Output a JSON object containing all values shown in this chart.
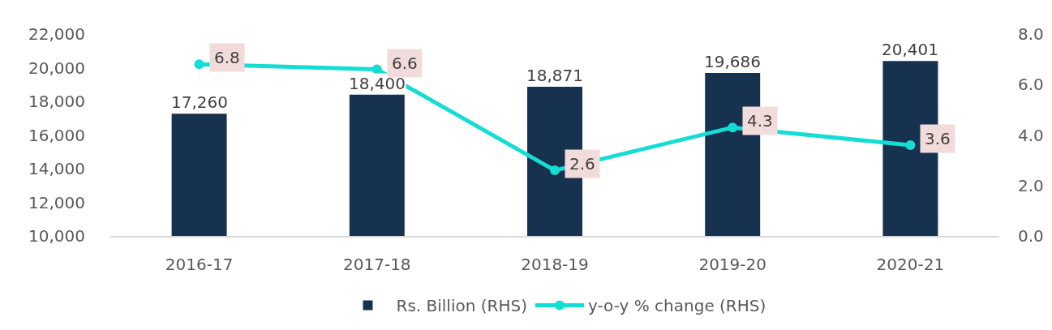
{
  "chart_data": {
    "type": "bar",
    "categories": [
      "2016-17",
      "2017-18",
      "2018-19",
      "2019-20",
      "2020-21"
    ],
    "series": [
      {
        "name": "Rs. Billion (RHS)",
        "color": "#17324f",
        "values": [
          17260,
          18400,
          18871,
          19686,
          20401
        ],
        "value_labels": [
          "17,260",
          "18,400",
          "18,871",
          "19,686",
          "20,401"
        ]
      },
      {
        "name": "y-o-y % change (RHS)",
        "type": "line",
        "axis": "y2",
        "color": "#13ddd4",
        "values": [
          6.8,
          6.6,
          2.6,
          4.3,
          3.6
        ]
      }
    ],
    "ylim": [
      10000,
      22000
    ],
    "yticks": [
      {
        "value": 10000,
        "label": "10,000"
      },
      {
        "value": 12000,
        "label": "12,000"
      },
      {
        "value": 14000,
        "label": "14,000"
      },
      {
        "value": 16000,
        "label": "16,000"
      },
      {
        "value": 18000,
        "label": "18,000"
      },
      {
        "value": 20000,
        "label": "20,000"
      },
      {
        "value": 22000,
        "label": "22,000"
      }
    ],
    "y2lim": [
      0,
      8
    ],
    "y2ticks": [
      {
        "value": 0,
        "label": "0.0"
      },
      {
        "value": 2,
        "label": "2.0"
      },
      {
        "value": 4,
        "label": "4.0"
      },
      {
        "value": 6,
        "label": "6.0"
      },
      {
        "value": 8,
        "label": "8.0"
      }
    ],
    "data_labels": true,
    "legend": "bottom",
    "grid": false,
    "marker": "circle",
    "line_style": "solid"
  }
}
